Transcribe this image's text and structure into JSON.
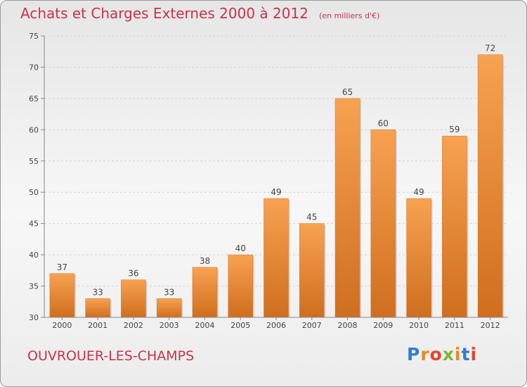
{
  "chart_data": {
    "type": "bar",
    "title": "Achats et Charges Externes 2000 à 2012",
    "subtitle": "(en milliers d'€)",
    "categories": [
      "2000",
      "2001",
      "2002",
      "2003",
      "2004",
      "2005",
      "2006",
      "2007",
      "2008",
      "2009",
      "2010",
      "2011",
      "2012"
    ],
    "values": [
      37,
      33,
      36,
      33,
      38,
      40,
      49,
      45,
      65,
      60,
      49,
      59,
      72
    ],
    "ylim": [
      30,
      75
    ],
    "yticks": [
      30,
      35,
      40,
      45,
      50,
      55,
      60,
      65,
      70,
      75
    ],
    "grid": true,
    "bar_color": "#f0913a"
  },
  "footer": {
    "city": "OUVROUER-LES-CHAMPS",
    "logo_text": "Proxiti"
  },
  "colors": {
    "title": "#c8324a",
    "logo": [
      "#2e7fd0",
      "#e8872a",
      "#e8432e",
      "#7ab838",
      "#e8872a",
      "#2e7fd0",
      "#e8432e"
    ]
  }
}
